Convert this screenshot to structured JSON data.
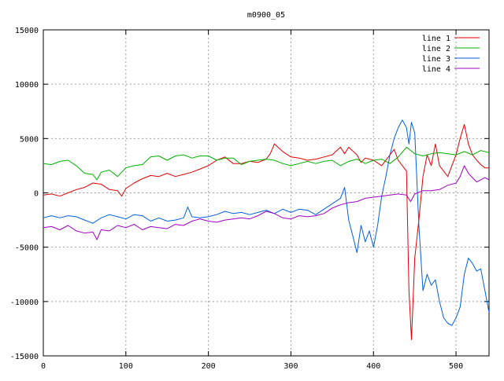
{
  "chart_data": {
    "type": "line",
    "title": "m0900_05",
    "xlabel": "",
    "ylabel": "",
    "xlim": [
      0,
      540
    ],
    "ylim": [
      -15000,
      15000
    ],
    "x_ticks": [
      0,
      100,
      200,
      300,
      400,
      500
    ],
    "y_ticks": [
      -15000,
      -10000,
      -5000,
      0,
      5000,
      10000,
      15000
    ],
    "grid": true,
    "legend_position": "top-right",
    "series": [
      {
        "name": "line 1",
        "color": "#e00000",
        "points": [
          [
            0,
            -200
          ],
          [
            10,
            -100
          ],
          [
            20,
            -300
          ],
          [
            30,
            0
          ],
          [
            40,
            300
          ],
          [
            50,
            500
          ],
          [
            60,
            900
          ],
          [
            70,
            800
          ],
          [
            80,
            300
          ],
          [
            90,
            200
          ],
          [
            95,
            -300
          ],
          [
            100,
            400
          ],
          [
            110,
            900
          ],
          [
            120,
            1300
          ],
          [
            130,
            1600
          ],
          [
            140,
            1500
          ],
          [
            150,
            1800
          ],
          [
            160,
            1500
          ],
          [
            170,
            1700
          ],
          [
            180,
            1900
          ],
          [
            190,
            2200
          ],
          [
            200,
            2500
          ],
          [
            210,
            3000
          ],
          [
            220,
            3300
          ],
          [
            230,
            2700
          ],
          [
            240,
            2700
          ],
          [
            250,
            2900
          ],
          [
            260,
            2800
          ],
          [
            270,
            3100
          ],
          [
            275,
            3600
          ],
          [
            280,
            4500
          ],
          [
            290,
            3800
          ],
          [
            300,
            3300
          ],
          [
            310,
            3200
          ],
          [
            320,
            3000
          ],
          [
            330,
            3100
          ],
          [
            340,
            3300
          ],
          [
            350,
            3500
          ],
          [
            360,
            4200
          ],
          [
            365,
            3600
          ],
          [
            370,
            4200
          ],
          [
            380,
            3500
          ],
          [
            385,
            2800
          ],
          [
            390,
            3200
          ],
          [
            400,
            3000
          ],
          [
            410,
            2500
          ],
          [
            420,
            3500
          ],
          [
            425,
            4000
          ],
          [
            430,
            3000
          ],
          [
            440,
            2000
          ],
          [
            443,
            -9000
          ],
          [
            446,
            -13500
          ],
          [
            450,
            -6000
          ],
          [
            455,
            -2500
          ],
          [
            460,
            1500
          ],
          [
            465,
            3500
          ],
          [
            470,
            2500
          ],
          [
            475,
            4500
          ],
          [
            480,
            2500
          ],
          [
            485,
            2000
          ],
          [
            490,
            1500
          ],
          [
            495,
            2500
          ],
          [
            500,
            3500
          ],
          [
            505,
            5000
          ],
          [
            510,
            6300
          ],
          [
            515,
            4500
          ],
          [
            520,
            3500
          ],
          [
            525,
            3000
          ],
          [
            530,
            2600
          ],
          [
            535,
            2300
          ],
          [
            540,
            2300
          ]
        ]
      },
      {
        "name": "line 2",
        "color": "#00b000",
        "points": [
          [
            0,
            2700
          ],
          [
            10,
            2600
          ],
          [
            20,
            2900
          ],
          [
            30,
            3000
          ],
          [
            40,
            2500
          ],
          [
            50,
            1800
          ],
          [
            60,
            1700
          ],
          [
            65,
            1200
          ],
          [
            70,
            1900
          ],
          [
            80,
            2100
          ],
          [
            90,
            1500
          ],
          [
            100,
            2300
          ],
          [
            110,
            2500
          ],
          [
            120,
            2600
          ],
          [
            130,
            3300
          ],
          [
            140,
            3400
          ],
          [
            150,
            3000
          ],
          [
            160,
            3400
          ],
          [
            170,
            3500
          ],
          [
            180,
            3200
          ],
          [
            190,
            3400
          ],
          [
            200,
            3400
          ],
          [
            210,
            3000
          ],
          [
            220,
            3200
          ],
          [
            230,
            3200
          ],
          [
            240,
            2600
          ],
          [
            250,
            2900
          ],
          [
            260,
            3000
          ],
          [
            270,
            3100
          ],
          [
            280,
            3000
          ],
          [
            290,
            2700
          ],
          [
            300,
            2500
          ],
          [
            310,
            2700
          ],
          [
            320,
            2900
          ],
          [
            330,
            2700
          ],
          [
            340,
            2900
          ],
          [
            350,
            3000
          ],
          [
            360,
            2500
          ],
          [
            370,
            2900
          ],
          [
            380,
            3100
          ],
          [
            390,
            2700
          ],
          [
            400,
            3000
          ],
          [
            410,
            3100
          ],
          [
            420,
            2700
          ],
          [
            430,
            3300
          ],
          [
            440,
            4200
          ],
          [
            450,
            3600
          ],
          [
            460,
            3400
          ],
          [
            470,
            3600
          ],
          [
            480,
            3700
          ],
          [
            490,
            3600
          ],
          [
            500,
            3500
          ],
          [
            510,
            3800
          ],
          [
            520,
            3500
          ],
          [
            530,
            3900
          ],
          [
            540,
            3700
          ]
        ]
      },
      {
        "name": "line 3",
        "color": "#0060e0",
        "points": [
          [
            0,
            -2300
          ],
          [
            10,
            -2100
          ],
          [
            20,
            -2300
          ],
          [
            30,
            -2100
          ],
          [
            40,
            -2200
          ],
          [
            50,
            -2500
          ],
          [
            60,
            -2800
          ],
          [
            70,
            -2300
          ],
          [
            80,
            -2000
          ],
          [
            90,
            -2200
          ],
          [
            100,
            -2400
          ],
          [
            110,
            -2000
          ],
          [
            120,
            -2100
          ],
          [
            130,
            -2600
          ],
          [
            140,
            -2300
          ],
          [
            150,
            -2600
          ],
          [
            160,
            -2500
          ],
          [
            170,
            -2300
          ],
          [
            175,
            -1300
          ],
          [
            180,
            -2200
          ],
          [
            190,
            -2300
          ],
          [
            200,
            -2200
          ],
          [
            210,
            -2000
          ],
          [
            220,
            -1700
          ],
          [
            230,
            -1900
          ],
          [
            240,
            -1800
          ],
          [
            250,
            -2000
          ],
          [
            260,
            -1800
          ],
          [
            270,
            -1600
          ],
          [
            280,
            -1900
          ],
          [
            290,
            -1500
          ],
          [
            300,
            -1800
          ],
          [
            310,
            -1500
          ],
          [
            320,
            -1600
          ],
          [
            330,
            -2000
          ],
          [
            340,
            -1500
          ],
          [
            350,
            -1000
          ],
          [
            360,
            -500
          ],
          [
            365,
            500
          ],
          [
            370,
            -2500
          ],
          [
            375,
            -4000
          ],
          [
            380,
            -5500
          ],
          [
            385,
            -3000
          ],
          [
            390,
            -4500
          ],
          [
            395,
            -3500
          ],
          [
            400,
            -5000
          ],
          [
            405,
            -3000
          ],
          [
            410,
            -300
          ],
          [
            415,
            1500
          ],
          [
            420,
            3500
          ],
          [
            425,
            5000
          ],
          [
            430,
            6000
          ],
          [
            435,
            6700
          ],
          [
            440,
            6000
          ],
          [
            443,
            4500
          ],
          [
            446,
            6500
          ],
          [
            450,
            5500
          ],
          [
            455,
            -3000
          ],
          [
            460,
            -9000
          ],
          [
            465,
            -7500
          ],
          [
            470,
            -8500
          ],
          [
            475,
            -8000
          ],
          [
            480,
            -10000
          ],
          [
            485,
            -11500
          ],
          [
            490,
            -12000
          ],
          [
            495,
            -12200
          ],
          [
            500,
            -11500
          ],
          [
            505,
            -10500
          ],
          [
            510,
            -7500
          ],
          [
            515,
            -6000
          ],
          [
            520,
            -6500
          ],
          [
            525,
            -7200
          ],
          [
            530,
            -7000
          ],
          [
            535,
            -9000
          ],
          [
            540,
            -11000
          ]
        ]
      },
      {
        "name": "line 4",
        "color": "#a000c0",
        "points": [
          [
            0,
            -3200
          ],
          [
            10,
            -3100
          ],
          [
            20,
            -3400
          ],
          [
            30,
            -3000
          ],
          [
            40,
            -3500
          ],
          [
            50,
            -3700
          ],
          [
            60,
            -3600
          ],
          [
            65,
            -4300
          ],
          [
            70,
            -3400
          ],
          [
            80,
            -3500
          ],
          [
            90,
            -3000
          ],
          [
            100,
            -3200
          ],
          [
            110,
            -2900
          ],
          [
            120,
            -3400
          ],
          [
            130,
            -3100
          ],
          [
            140,
            -3200
          ],
          [
            150,
            -3300
          ],
          [
            160,
            -2900
          ],
          [
            170,
            -3000
          ],
          [
            180,
            -2600
          ],
          [
            190,
            -2400
          ],
          [
            200,
            -2600
          ],
          [
            210,
            -2700
          ],
          [
            220,
            -2500
          ],
          [
            230,
            -2400
          ],
          [
            240,
            -2300
          ],
          [
            250,
            -2400
          ],
          [
            260,
            -2100
          ],
          [
            270,
            -1700
          ],
          [
            280,
            -1900
          ],
          [
            290,
            -2300
          ],
          [
            300,
            -2400
          ],
          [
            310,
            -2100
          ],
          [
            320,
            -2200
          ],
          [
            330,
            -2100
          ],
          [
            340,
            -1900
          ],
          [
            350,
            -1400
          ],
          [
            360,
            -1100
          ],
          [
            370,
            -900
          ],
          [
            380,
            -800
          ],
          [
            390,
            -500
          ],
          [
            400,
            -400
          ],
          [
            410,
            -300
          ],
          [
            420,
            -200
          ],
          [
            430,
            -100
          ],
          [
            440,
            -200
          ],
          [
            445,
            -800
          ],
          [
            450,
            -100
          ],
          [
            460,
            200
          ],
          [
            470,
            200
          ],
          [
            480,
            300
          ],
          [
            490,
            700
          ],
          [
            500,
            900
          ],
          [
            505,
            1500
          ],
          [
            510,
            2500
          ],
          [
            515,
            1800
          ],
          [
            520,
            1400
          ],
          [
            525,
            1000
          ],
          [
            530,
            1200
          ],
          [
            535,
            1400
          ],
          [
            540,
            1200
          ]
        ]
      }
    ]
  }
}
